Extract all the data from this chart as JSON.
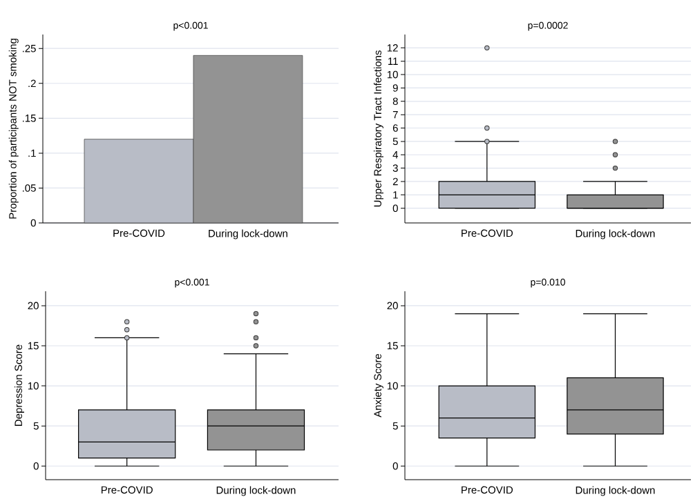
{
  "chart_data": [
    {
      "type": "bar",
      "title": "p<0.001",
      "ylabel": "Proportion of participants NOT smoking",
      "categories": [
        "Pre-COVID",
        "During lock-down"
      ],
      "values": [
        0.12,
        0.24
      ],
      "colors": [
        "#b8bcc6",
        "#939393"
      ],
      "ylim": [
        0,
        0.27
      ],
      "yticks": [
        0,
        {
          "value": 0.05,
          "label": ".05"
        },
        {
          "value": 0.1,
          "label": ".1"
        },
        {
          "value": 0.15,
          "label": ".15"
        },
        {
          "value": 0.2,
          "label": ".2"
        },
        {
          "value": 0.25,
          "label": ".25"
        }
      ],
      "grid": "y"
    },
    {
      "type": "box",
      "title": "p=0.0002",
      "ylabel": "Upper Respiratory Tract Infections",
      "categories": [
        "Pre-COVID",
        "During lock-down"
      ],
      "colors": [
        "#b8bcc6",
        "#939393"
      ],
      "boxes": [
        {
          "low": 0,
          "q1": 0,
          "median": 1,
          "q3": 2,
          "high": 5,
          "outliers": [
            5,
            6,
            12
          ]
        },
        {
          "low": 0,
          "q1": 0,
          "median": 0,
          "q3": 1,
          "high": 2,
          "outliers": [
            3,
            4,
            5
          ]
        }
      ],
      "ylim": [
        -1.1,
        13
      ],
      "yticks": [
        0,
        1,
        2,
        3,
        4,
        5,
        6,
        7,
        8,
        9,
        10,
        11,
        12
      ],
      "grid": "y"
    },
    {
      "type": "box",
      "title": "p<0.001",
      "ylabel": "Depression Score",
      "categories": [
        "Pre-COVID",
        "During lock-down"
      ],
      "colors": [
        "#b8bcc6",
        "#939393"
      ],
      "boxes": [
        {
          "low": 0,
          "q1": 1,
          "median": 3,
          "q3": 7,
          "high": 16,
          "outliers": [
            16,
            17,
            18
          ]
        },
        {
          "low": 0,
          "q1": 2,
          "median": 5,
          "q3": 7,
          "high": 14,
          "outliers": [
            15,
            16,
            18,
            19
          ]
        }
      ],
      "ylim": [
        -1.7,
        21.8
      ],
      "yticks": [
        0,
        5,
        10,
        15,
        20
      ],
      "grid": "y"
    },
    {
      "type": "box",
      "title": "p=0.010",
      "ylabel": "Anxiety Score",
      "categories": [
        "Pre-COVID",
        "During lock-down"
      ],
      "colors": [
        "#b8bcc6",
        "#939393"
      ],
      "boxes": [
        {
          "low": 0,
          "q1": 3.5,
          "median": 6,
          "q3": 10,
          "high": 19
        },
        {
          "low": 0,
          "q1": 4,
          "median": 7,
          "q3": 11,
          "high": 19
        }
      ],
      "ylim": [
        -1.7,
        21.8
      ],
      "yticks": [
        0,
        5,
        10,
        15,
        20
      ],
      "grid": "y"
    }
  ]
}
